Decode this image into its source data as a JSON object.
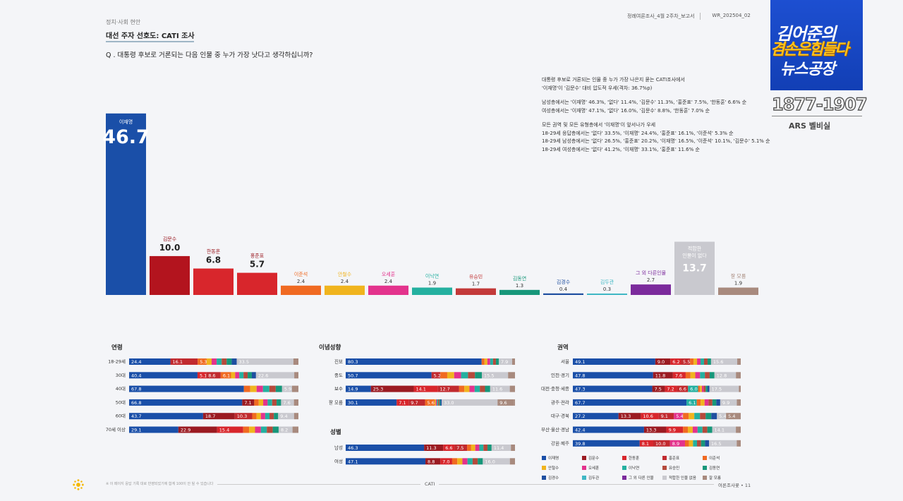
{
  "header": {
    "category": "정치·사회 현안",
    "title": "대선 주자 선호도: CATI 조사",
    "report_name": "정례여론조사_4월 2주차_보고서",
    "report_code": "WR_202504_02",
    "question": "Q . 대통령 후보로 거론되는 다음 인물 중 누가 가장 낫다고 생각하십니까?"
  },
  "summary": [
    "대통령 후보로 거론되는 인물 중 누가 가장 나은지 묻는 CATI조사에서",
    "'이재명'이 '김문수' 대비 압도적 우세(격차: 36.7%p)",
    "",
    "남성층에서는 '이재명' 46.3%, '없다' 11.4%, '김문수' 11.3%, '홍준표' 7.5%, '한동훈' 6.6% 순",
    "여성층에서는 '이재명' 47.1%, '없다' 16.0%, '김문수' 8.8%, '한동훈' 7.0% 순",
    "",
    "모든 권역 및 모든 유형층에서 '이재명'이 앞서나가 우세",
    "18-29세 응답층에서는 '없다' 33.5%, '이재명' 24.4%, '홍준표' 16.1%, '이준석' 5.3% 순",
    "18-29세 남성층에서는 '없다' 26.5%, '홍준표' 20.2%, '이재명' 16.5%, '이준석' 10.1%, '김문수' 5.1% 순",
    "18-29세 여성층에서는 '없다' 41.2%, '이재명' 33.1%, '홍준표' 11.6% 순"
  ],
  "overlay": {
    "logo_line1": "김어준의",
    "logo_line2": "겸손은힘들다",
    "logo_line3": "뉴스공장",
    "phone": "1877-1907",
    "ars": "ARS 벨비실"
  },
  "chart_data": [
    {
      "type": "bar",
      "title": "대선 주자 선호도",
      "categories": [
        "이재명",
        "김문수",
        "한동훈",
        "홍준표",
        "이준석",
        "안철수",
        "오세훈",
        "이낙연",
        "유승민",
        "김동연",
        "김경수",
        "김두관",
        "그 외 다른인물",
        "적합한 인물이 없다",
        "잘 모름"
      ],
      "values": [
        46.7,
        10.0,
        6.8,
        5.7,
        2.4,
        2.4,
        2.4,
        1.9,
        1.7,
        1.3,
        0.4,
        0.3,
        2.7,
        13.7,
        1.9
      ],
      "colors": [
        "#1a4fa8",
        "#b3141e",
        "#d8262c",
        "#d8262c",
        "#f06a22",
        "#f0b41e",
        "#e3338d",
        "#24b0a0",
        "#c33a3a",
        "#17977a",
        "#1f4fa0",
        "#3fb7c4",
        "#7b2a9c",
        "#c9c9cf",
        "#a88a7e"
      ],
      "ylim": [
        0,
        50
      ]
    },
    {
      "type": "bar",
      "title": "연령",
      "orientation": "horizontal-stacked",
      "rows": [
        {
          "label": "18-29세",
          "segments": [
            24.4,
            0,
            0,
            16.1,
            5.3,
            0,
            0,
            0,
            0,
            0,
            0,
            0,
            0,
            33.5,
            0
          ],
          "labels": [
            "24.4",
            "16.1",
            "5.3",
            "33.5"
          ]
        },
        {
          "label": "30대",
          "segments": [
            40.4,
            0,
            5.1,
            8.6,
            6.1,
            0,
            0,
            0,
            0,
            0,
            0,
            0,
            0,
            22.6,
            0
          ],
          "labels": [
            "40.4",
            "5.1",
            "8.6",
            "6.1",
            "22.6"
          ]
        },
        {
          "label": "40대",
          "segments": [
            67.8,
            0,
            0,
            0,
            0,
            0,
            0,
            0,
            0,
            0,
            0,
            0,
            0,
            5.9,
            0
          ],
          "labels": [
            "67.8",
            "5.9"
          ]
        },
        {
          "label": "50대",
          "segments": [
            66.8,
            7.1,
            0,
            0,
            0,
            0,
            0,
            0,
            0,
            0,
            0,
            0,
            0,
            7.6,
            0
          ],
          "labels": [
            "66.8",
            "7.1",
            "7.6"
          ]
        },
        {
          "label": "60대",
          "segments": [
            43.7,
            18.7,
            0,
            10.3,
            0,
            0,
            0,
            0,
            0,
            0,
            0,
            0,
            0,
            9.4,
            0
          ],
          "labels": [
            "43.7",
            "18.7",
            "10.3",
            "9.4"
          ]
        },
        {
          "label": "70세 이상",
          "segments": [
            29.1,
            22.9,
            15.4,
            0,
            0,
            0,
            0,
            0,
            0,
            0,
            0,
            0,
            0,
            8.2,
            0
          ],
          "labels": [
            "29.1",
            "22.9",
            "15.4",
            "8.2"
          ]
        }
      ]
    },
    {
      "type": "bar",
      "title": "이념성향",
      "orientation": "horizontal-stacked",
      "rows": [
        {
          "label": "진보",
          "segments": [
            80.3,
            0,
            0,
            0,
            0,
            0,
            0,
            0,
            0,
            0,
            0,
            0,
            0,
            7.9,
            0
          ],
          "labels": [
            "80.3",
            "7.9"
          ]
        },
        {
          "label": "중도",
          "segments": [
            50.7,
            0,
            0,
            5.2,
            0,
            0,
            0,
            0,
            0,
            0,
            0,
            0,
            0,
            15.5,
            0
          ],
          "labels": [
            "50.7",
            "5.2",
            "15.5"
          ]
        },
        {
          "label": "보수",
          "segments": [
            14.9,
            25.3,
            14.1,
            12.7,
            0,
            0,
            0,
            0,
            0,
            0,
            0,
            0,
            0,
            11.6,
            0
          ],
          "labels": [
            "14.9",
            "25.3",
            "14.1",
            "12.7",
            "11.6"
          ]
        },
        {
          "label": "잘 모름",
          "segments": [
            30.1,
            0,
            7.1,
            9.7,
            5.6,
            0,
            0,
            0,
            0,
            0,
            0,
            0,
            0,
            33.0,
            9.6
          ],
          "labels": [
            "30.1",
            "7.1",
            "9.7",
            "5.6",
            "33.0",
            "9.6"
          ]
        }
      ]
    },
    {
      "type": "bar",
      "title": "성별",
      "orientation": "horizontal-stacked",
      "rows": [
        {
          "label": "남성",
          "segments": [
            46.3,
            11.3,
            6.6,
            7.5,
            0,
            0,
            0,
            0,
            0,
            0,
            0,
            0,
            0,
            11.4,
            0
          ],
          "labels": [
            "46.3",
            "11.3",
            "6.6",
            "7.5",
            "11.4"
          ]
        },
        {
          "label": "여성",
          "segments": [
            47.1,
            8.8,
            7.0,
            0,
            0,
            0,
            0,
            0,
            0,
            0,
            0,
            0,
            0,
            16.0,
            0
          ],
          "labels": [
            "47.1",
            "8.8",
            "7.0",
            "16.0"
          ]
        }
      ]
    },
    {
      "type": "bar",
      "title": "권역",
      "orientation": "horizontal-stacked",
      "rows": [
        {
          "label": "서울",
          "segments": [
            49.1,
            9.0,
            6.2,
            5.5,
            0,
            0,
            0,
            0,
            0,
            0,
            0,
            0,
            0,
            15.6,
            0
          ],
          "labels": [
            "49.1",
            "9.0",
            "6.2",
            "5.5",
            "15.6"
          ]
        },
        {
          "label": "인천·경기",
          "segments": [
            47.8,
            11.8,
            7.6,
            0,
            0,
            0,
            0,
            0,
            0,
            0,
            0,
            0,
            0,
            12.8,
            0
          ],
          "labels": [
            "47.8",
            "11.8",
            "7.6",
            "12.8"
          ]
        },
        {
          "label": "대전·충청·세종",
          "segments": [
            47.3,
            7.5,
            7.2,
            6.6,
            0,
            0,
            0,
            6.0,
            0,
            0,
            0,
            0,
            0,
            17.5,
            0
          ],
          "labels": [
            "47.3",
            "7.5",
            "7.2",
            "6.6",
            "6.0",
            "17.5"
          ]
        },
        {
          "label": "광주·전라",
          "segments": [
            67.7,
            0,
            0,
            0,
            0,
            0,
            0,
            6.1,
            0,
            0,
            0,
            0,
            0,
            9.9,
            0
          ],
          "labels": [
            "67.7",
            "6.1",
            "9.9"
          ]
        },
        {
          "label": "대구·경북",
          "segments": [
            27.2,
            13.3,
            10.6,
            9.1,
            0,
            0,
            5.4,
            0,
            0,
            0,
            0,
            0,
            0,
            5.4,
            5.4
          ],
          "labels": [
            "27.2",
            "13.3",
            "10.6",
            "9.1",
            "5.4",
            "5.4",
            "5.4"
          ]
        },
        {
          "label": "부산·울산·경남",
          "segments": [
            42.4,
            13.3,
            9.9,
            0,
            0,
            0,
            0,
            0,
            0,
            0,
            0,
            0,
            0,
            14.1,
            0
          ],
          "labels": [
            "42.4",
            "13.3",
            "9.9",
            "14.1"
          ]
        },
        {
          "label": "강원·제주",
          "segments": [
            39.8,
            0,
            8.1,
            10.0,
            0,
            0,
            8.9,
            0,
            0,
            0,
            0,
            0,
            0,
            16.5,
            0
          ],
          "labels": [
            "39.8",
            "8.1",
            "10.0",
            "8.9",
            "16.5"
          ]
        }
      ]
    }
  ],
  "legend": [
    {
      "label": "이재명",
      "color": "#1a4fa8"
    },
    {
      "label": "김문수",
      "color": "#9b1b22"
    },
    {
      "label": "한동훈",
      "color": "#d8262c"
    },
    {
      "label": "홍준표",
      "color": "#c12a2f"
    },
    {
      "label": "이준석",
      "color": "#f06a22"
    },
    {
      "label": "안철수",
      "color": "#f0b41e"
    },
    {
      "label": "오세훈",
      "color": "#e3338d"
    },
    {
      "label": "이낙연",
      "color": "#24b0a0"
    },
    {
      "label": "유승민",
      "color": "#b54a3c"
    },
    {
      "label": "김동연",
      "color": "#17977a"
    },
    {
      "label": "김경수",
      "color": "#1f4fa0"
    },
    {
      "label": "김두관",
      "color": "#3fb7c4"
    },
    {
      "label": "그 외 다른 인물",
      "color": "#7b2a9c"
    },
    {
      "label": "적합한 인물 없음",
      "color": "#c9c9cf"
    },
    {
      "label": "잘 모름",
      "color": "#a88a7e"
    }
  ],
  "footer": {
    "note": "※ 이 페이지 응답 기록 대로 반영되었기에 합계 100이 안 될 수 있습니다",
    "center": "CATI",
    "right": "여론조사꽃 • 11"
  }
}
